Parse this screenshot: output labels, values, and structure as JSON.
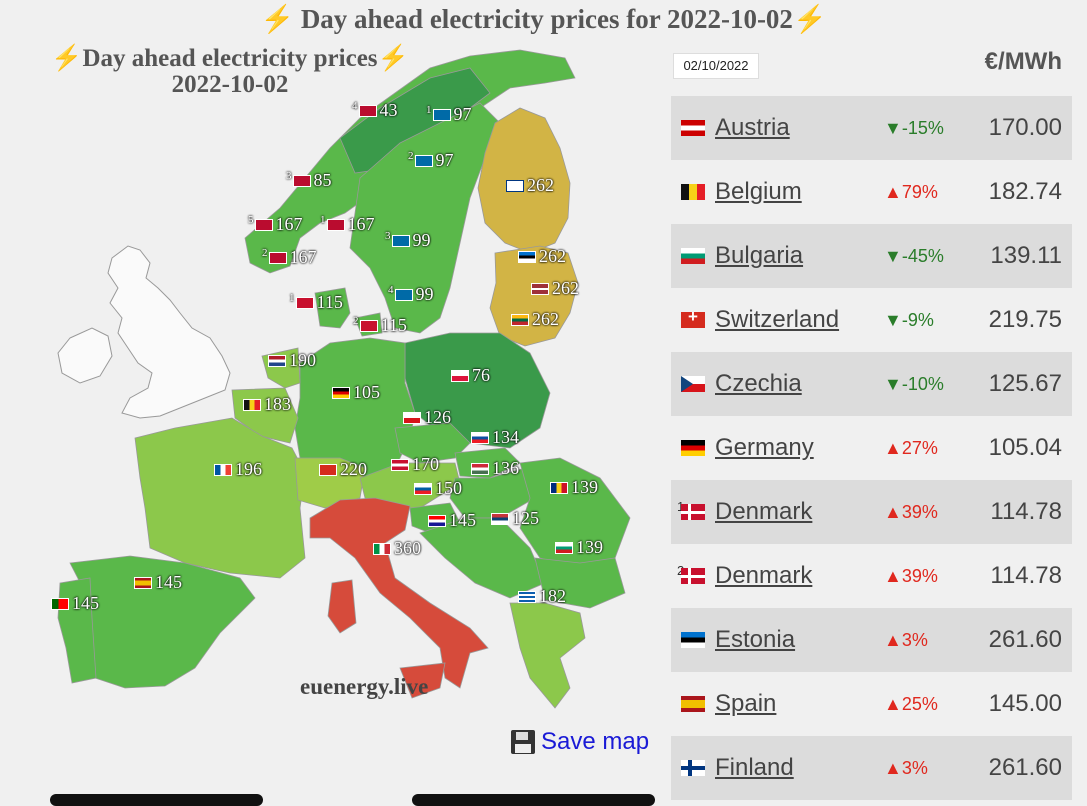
{
  "header": {
    "bolt": "⚡",
    "title": "Day ahead electricity prices for 2022-10-02"
  },
  "map": {
    "title_line1": "⚡Day ahead electricity prices⚡",
    "title_line2": "2022-10-02",
    "credit": "euenergy.live",
    "labels": [
      {
        "zone": "4",
        "flag": "no",
        "value": "43"
      },
      {
        "zone": "1",
        "flag": "se",
        "value": "97"
      },
      {
        "zone": "2",
        "flag": "se",
        "value": "97"
      },
      {
        "zone": "3",
        "flag": "no",
        "value": "85"
      },
      {
        "zone": "",
        "flag": "fi",
        "value": "262"
      },
      {
        "zone": "5",
        "flag": "no",
        "value": "167"
      },
      {
        "zone": "1",
        "flag": "no",
        "value": "167"
      },
      {
        "zone": "3",
        "flag": "se",
        "value": "99"
      },
      {
        "zone": "2",
        "flag": "no",
        "value": "167"
      },
      {
        "zone": "",
        "flag": "ee",
        "value": "262"
      },
      {
        "zone": "",
        "flag": "lv",
        "value": "262"
      },
      {
        "zone": "4",
        "flag": "se",
        "value": "99"
      },
      {
        "zone": "1",
        "flag": "dk",
        "value": "115"
      },
      {
        "zone": "",
        "flag": "lt",
        "value": "262"
      },
      {
        "zone": "2",
        "flag": "dk",
        "value": "115"
      },
      {
        "zone": "",
        "flag": "nl",
        "value": "190"
      },
      {
        "zone": "",
        "flag": "pl",
        "value": "76"
      },
      {
        "zone": "",
        "flag": "de",
        "value": "105"
      },
      {
        "zone": "",
        "flag": "be",
        "value": "183"
      },
      {
        "zone": "",
        "flag": "cz",
        "value": "126"
      },
      {
        "zone": "",
        "flag": "sk",
        "value": "134"
      },
      {
        "zone": "",
        "flag": "fr",
        "value": "196"
      },
      {
        "zone": "",
        "flag": "ch",
        "value": "220"
      },
      {
        "zone": "",
        "flag": "at",
        "value": "170"
      },
      {
        "zone": "",
        "flag": "hu",
        "value": "136"
      },
      {
        "zone": "",
        "flag": "ro",
        "value": "139"
      },
      {
        "zone": "",
        "flag": "si",
        "value": "150"
      },
      {
        "zone": "",
        "flag": "hr",
        "value": "145"
      },
      {
        "zone": "",
        "flag": "rs",
        "value": "125"
      },
      {
        "zone": "",
        "flag": "it",
        "value": "360"
      },
      {
        "zone": "",
        "flag": "bg",
        "value": "139"
      },
      {
        "zone": "",
        "flag": "es",
        "value": "145"
      },
      {
        "zone": "",
        "flag": "pt",
        "value": "145"
      },
      {
        "zone": "",
        "flag": "gr",
        "value": "182"
      }
    ],
    "save_label": "Save map",
    "save_icon": "floppy-disk-icon"
  },
  "sidebar": {
    "date_value": "02/10/2022",
    "unit": "€/MWh",
    "rows": [
      {
        "flag": "at",
        "zone": "",
        "name": "Austria",
        "dir": "down",
        "arrow": "▼",
        "change": "-15%",
        "price": "170.00"
      },
      {
        "flag": "be",
        "zone": "",
        "name": "Belgium",
        "dir": "up",
        "arrow": "▲",
        "change": "79%",
        "price": "182.74"
      },
      {
        "flag": "bg",
        "zone": "",
        "name": "Bulgaria",
        "dir": "down",
        "arrow": "▼",
        "change": "-45%",
        "price": "139.11"
      },
      {
        "flag": "ch",
        "zone": "",
        "name": "Switzerland",
        "dir": "down",
        "arrow": "▼",
        "change": "-9%",
        "price": "219.75"
      },
      {
        "flag": "cz",
        "zone": "",
        "name": "Czechia",
        "dir": "down",
        "arrow": "▼",
        "change": "-10%",
        "price": "125.67"
      },
      {
        "flag": "de",
        "zone": "",
        "name": "Germany",
        "dir": "up",
        "arrow": "▲",
        "change": "27%",
        "price": "105.04"
      },
      {
        "flag": "dk",
        "zone": "1",
        "name": "Denmark",
        "dir": "up",
        "arrow": "▲",
        "change": "39%",
        "price": "114.78"
      },
      {
        "flag": "dk",
        "zone": "2",
        "name": "Denmark",
        "dir": "up",
        "arrow": "▲",
        "change": "39%",
        "price": "114.78"
      },
      {
        "flag": "ee",
        "zone": "",
        "name": "Estonia",
        "dir": "up",
        "arrow": "▲",
        "change": "3%",
        "price": "261.60"
      },
      {
        "flag": "es",
        "zone": "",
        "name": "Spain",
        "dir": "up",
        "arrow": "▲",
        "change": "25%",
        "price": "145.00"
      },
      {
        "flag": "fi",
        "zone": "",
        "name": "Finland",
        "dir": "up",
        "arrow": "▲",
        "change": "3%",
        "price": "261.60"
      }
    ]
  },
  "colors": {
    "low": "#3a9a4a",
    "mid": "#5ab84a",
    "high": "#8cc84b",
    "yellow": "#d2b445",
    "red": "#d64b3b",
    "down": "#2a7d2a",
    "up": "#e0281e"
  }
}
